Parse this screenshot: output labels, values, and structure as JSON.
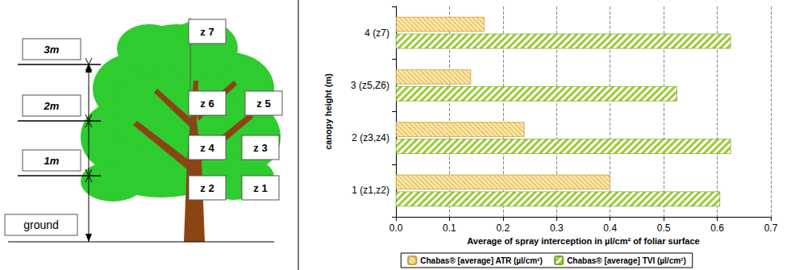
{
  "chart_data": {
    "type": "bar",
    "orientation": "horizontal",
    "categories": [
      "1 (z1,z2)",
      "2 (z3,z4)",
      "3 (z5,Z6)",
      "4 (z7)"
    ],
    "series": [
      {
        "name": "Chabas® [average] ATR (µl/cm²)",
        "color": "#fce9a8",
        "values": [
          0.4,
          0.24,
          0.14,
          0.165
        ]
      },
      {
        "name": "Chabas® [average] TVI (µl/cm²)",
        "color": "#99cc33",
        "values": [
          0.605,
          0.625,
          0.525,
          0.625
        ]
      }
    ],
    "x_label": "Average of spray interception in µl/cm² of foliar surface",
    "y_label": "canopy height (m)",
    "xlim": [
      0,
      0.7
    ],
    "xticks": [
      {
        "value": 0,
        "label": "0.0"
      },
      0.1,
      0.2,
      0.3,
      0.4,
      0.5,
      0.6,
      0.7
    ],
    "grid": true,
    "legend": "bottom"
  },
  "diagram": {
    "height_marks": [
      "3m",
      "2m",
      "1m"
    ],
    "ground": "ground",
    "zones": [
      "z 1",
      "z 2",
      "z 3",
      "z 4",
      "z 5",
      "z 6",
      "z 7"
    ]
  }
}
